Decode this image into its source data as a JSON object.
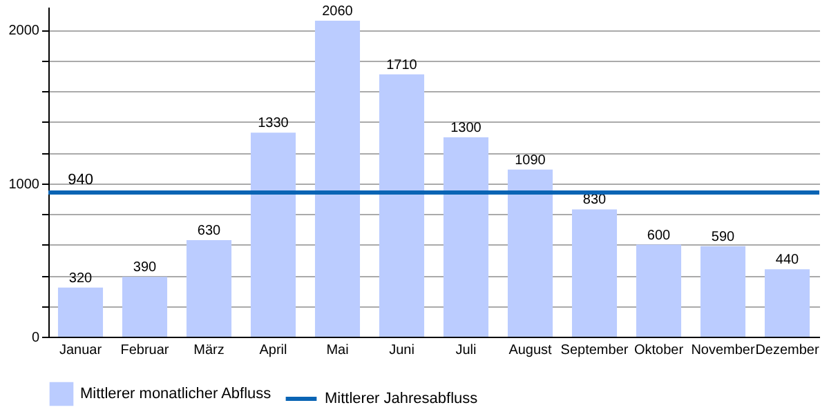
{
  "chart_data": {
    "type": "bar",
    "categories": [
      "Januar",
      "Februar",
      "März",
      "April",
      "Mai",
      "Juni",
      "Juli",
      "August",
      "September",
      "Oktober",
      "November",
      "Dezember"
    ],
    "series": [
      {
        "name": "Mittlerer monatlicher Abfluss",
        "color": "#bbccff",
        "values": [
          320,
          390,
          630,
          1330,
          2060,
          1710,
          1300,
          1090,
          830,
          600,
          590,
          440
        ]
      }
    ],
    "ref_lines": [
      {
        "axis": "y",
        "value": 940,
        "label": "Mittlerer Jahresabfluss",
        "color": "#0a64b4"
      }
    ],
    "annotations": [
      {
        "text": "940",
        "x": "Januar",
        "y": 940
      }
    ],
    "data_labels": true,
    "ylim": [
      0,
      2150
    ],
    "yticks": [
      0,
      {
        "value": 200,
        "label": null
      },
      {
        "value": 400,
        "label": null
      },
      {
        "value": 600,
        "label": null
      },
      {
        "value": 800,
        "label": null
      },
      1000,
      {
        "value": 1200,
        "label": null
      },
      {
        "value": 1400,
        "label": null
      },
      {
        "value": 1600,
        "label": null
      },
      {
        "value": 1800,
        "label": null
      },
      2000
    ],
    "grid": "y",
    "legend": "bottom"
  }
}
